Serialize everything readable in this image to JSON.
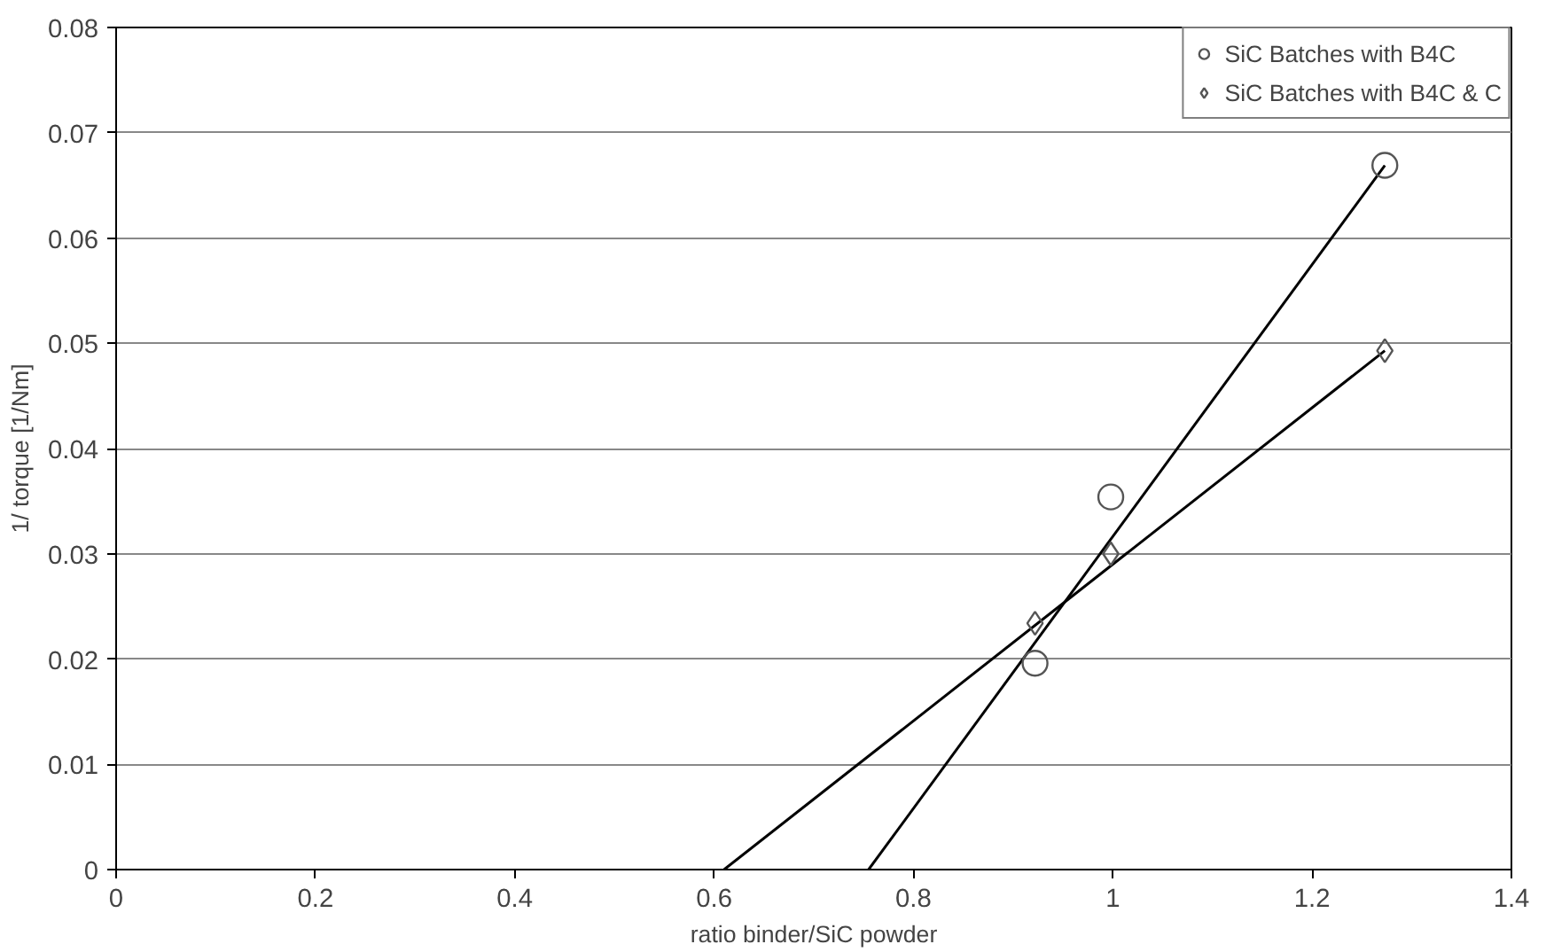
{
  "chart_data": {
    "type": "scatter",
    "xlabel": "ratio binder/SiC powder",
    "ylabel": "1/ torque [1/Nm]",
    "xlim": [
      0,
      1.4
    ],
    "xticks": [
      0,
      0.2,
      0.4,
      0.6,
      0.8,
      1,
      1.2,
      1.4
    ],
    "ylim": [
      0,
      0.08
    ],
    "yticks": [
      0,
      0.01,
      0.02,
      0.03,
      0.04,
      0.05,
      0.06,
      0.07,
      0.08
    ],
    "grid": "y",
    "legend": "top right",
    "series": [
      {
        "name": "SiC Batches with B4C",
        "color": "#555555",
        "marker": "circle",
        "x": [
          0.922,
          0.998,
          1.273
        ],
        "values": [
          0.0196,
          0.0354,
          0.0669
        ]
      },
      {
        "name": "SiC Batches with B4C & C",
        "color": "#555555",
        "marker": "diamond",
        "x": [
          0.922,
          0.998,
          1.273
        ],
        "values": [
          0.0234,
          0.03,
          0.0493
        ]
      },
      {
        "type": "line",
        "color": "#000000",
        "x": [
          0.755,
          1.273
        ],
        "values": [
          0,
          0.0669
        ]
      },
      {
        "type": "line",
        "color": "#000000",
        "x": [
          0.61,
          1.273
        ],
        "values": [
          0,
          0.0493
        ]
      }
    ]
  }
}
